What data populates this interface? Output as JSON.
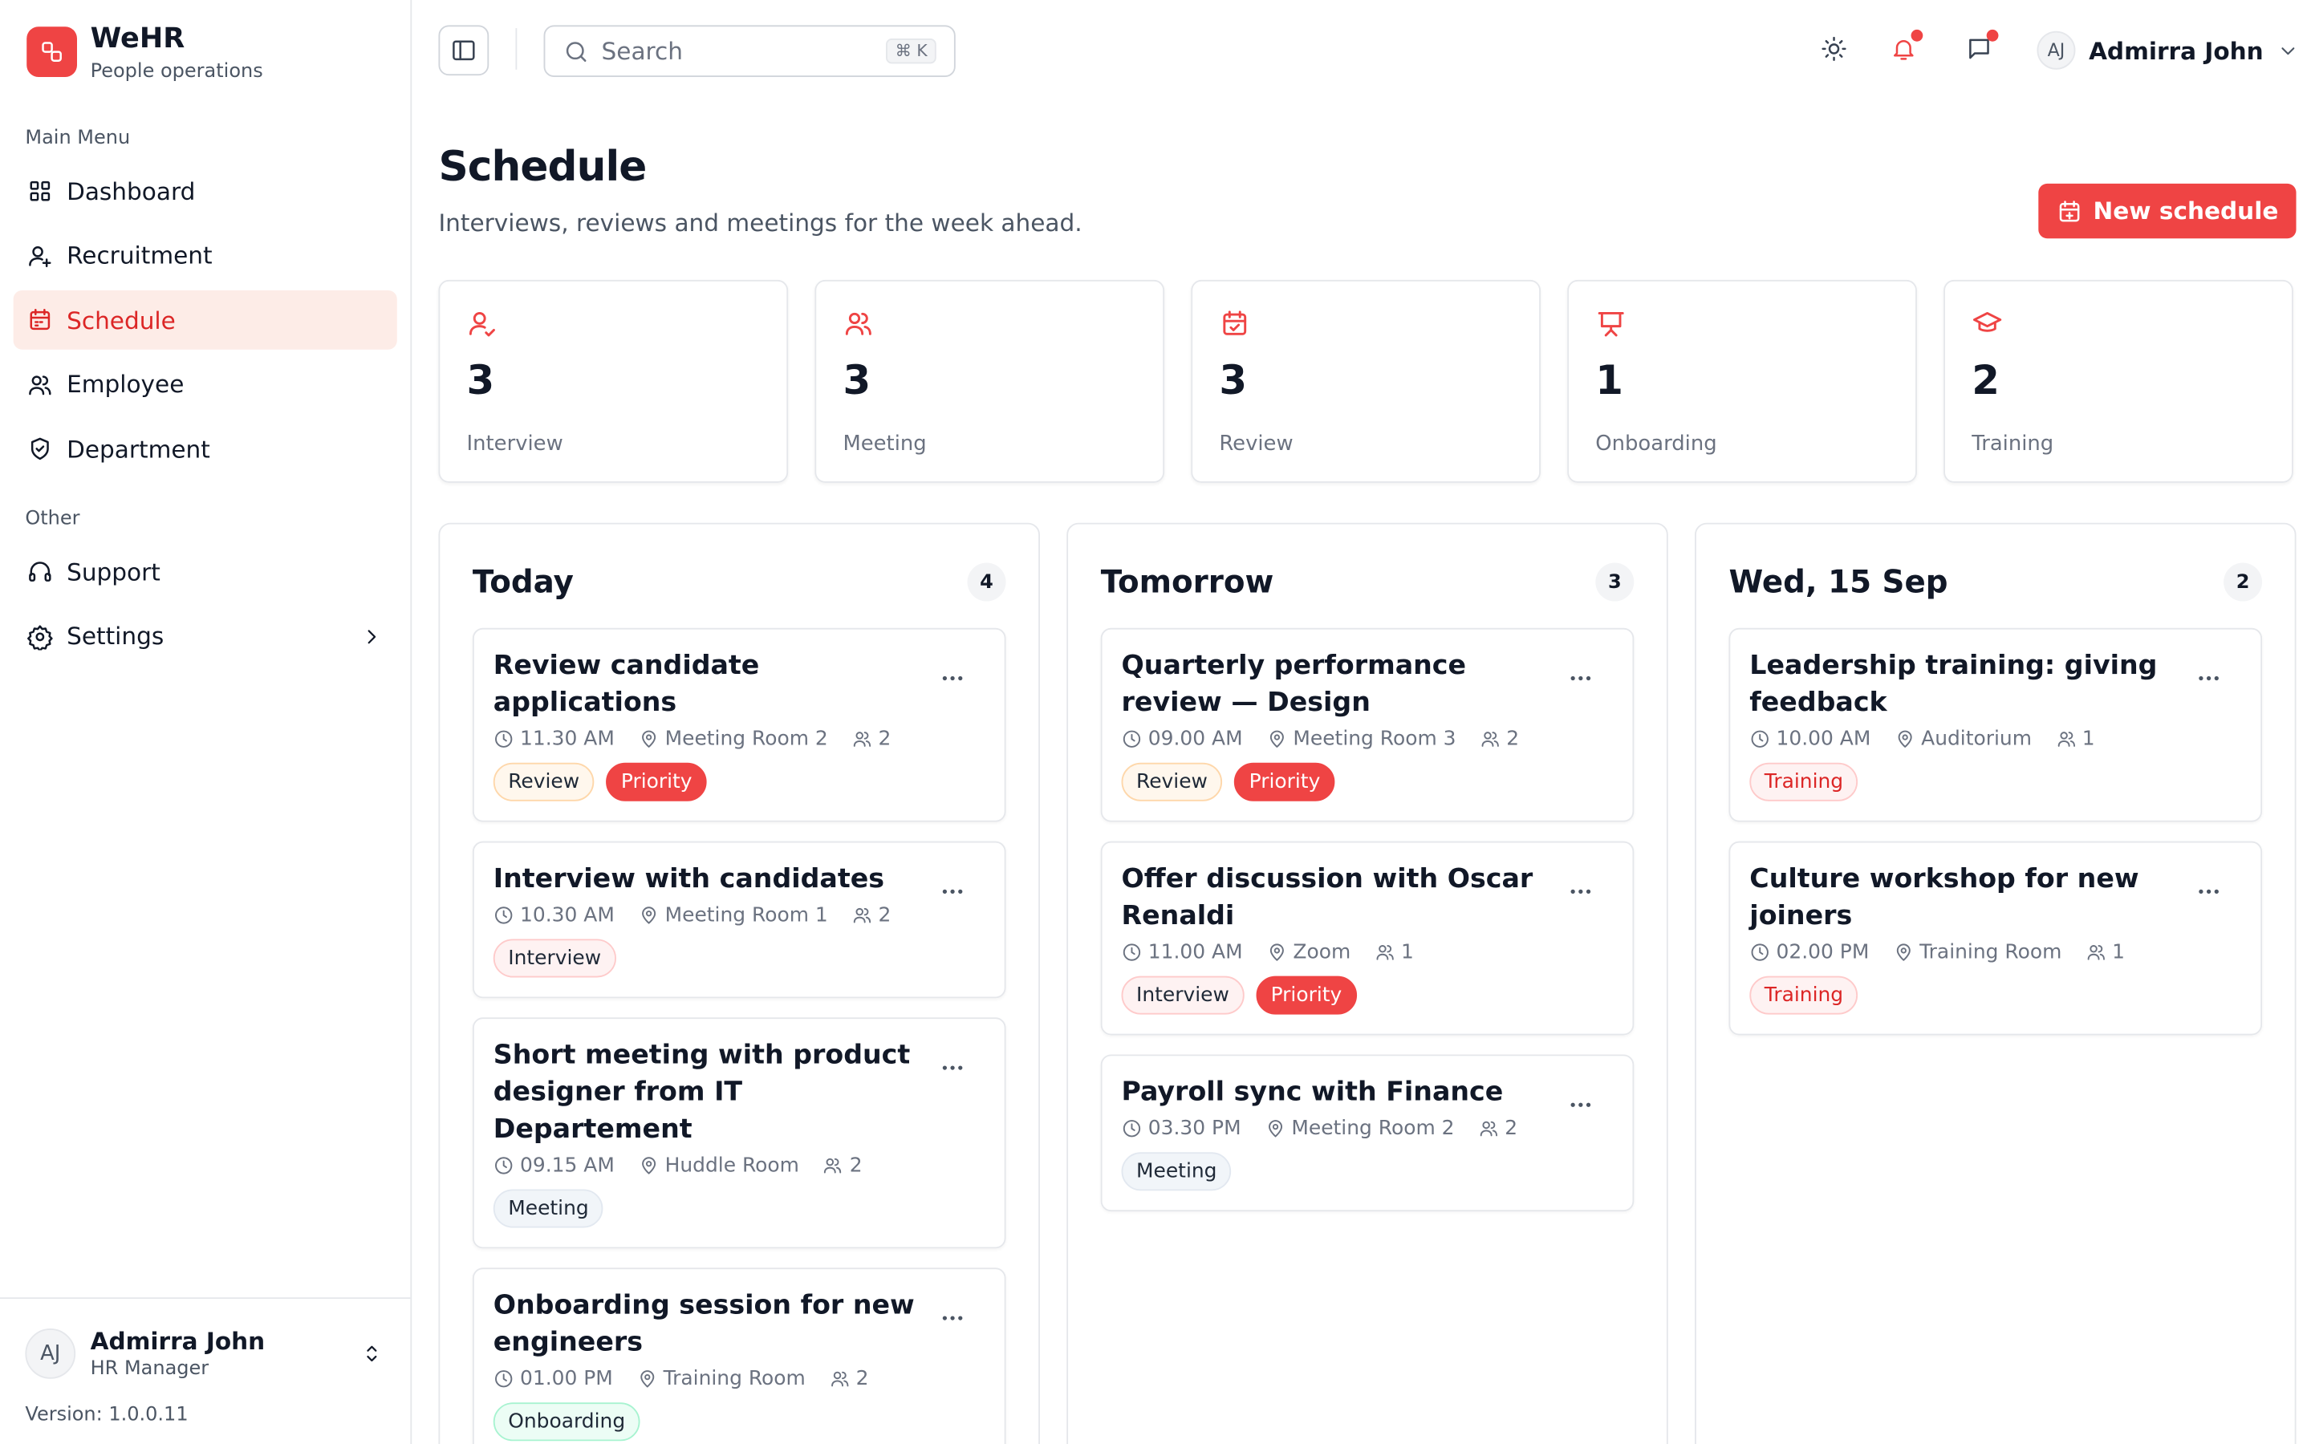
{
  "brand": {
    "name": "WeHR",
    "subtitle": "People operations"
  },
  "sidebar": {
    "active": "Schedule",
    "sections": [
      {
        "title": "Main Menu",
        "items": [
          {
            "label": "Dashboard",
            "icon": "grid"
          },
          {
            "label": "Recruitment",
            "icon": "user-plus"
          },
          {
            "label": "Schedule",
            "icon": "calendar"
          },
          {
            "label": "Employee",
            "icon": "users"
          },
          {
            "label": "Department",
            "icon": "shield"
          }
        ]
      },
      {
        "title": "Other",
        "items": [
          {
            "label": "Support",
            "icon": "headphones"
          },
          {
            "label": "Settings",
            "icon": "gear",
            "submenu": true
          }
        ]
      }
    ]
  },
  "user": {
    "initials": "AJ",
    "name": "Admirra John",
    "role": "HR Manager"
  },
  "version": "Version: 1.0.0.11",
  "topbar": {
    "search": "Search",
    "shortcut": "⌘ K"
  },
  "header": {
    "title": "Schedule",
    "subtitle": "Interviews, reviews and meetings for the week ahead.",
    "button": "New schedule"
  },
  "stats": [
    {
      "value": 3,
      "label": "Interview",
      "icon": "user-check"
    },
    {
      "value": 3,
      "label": "Meeting",
      "icon": "users"
    },
    {
      "value": 3,
      "label": "Review",
      "icon": "calendar-check"
    },
    {
      "value": 1,
      "label": "Onboarding",
      "icon": "presentation"
    },
    {
      "value": 2,
      "label": "Training",
      "icon": "cap"
    }
  ],
  "columns": [
    {
      "title": "Today",
      "count": 4,
      "events": [
        {
          "title": "Review candidate applications",
          "time": "11.30 AM",
          "location": "Meeting Room 2",
          "attendees": 2,
          "tags": [
            {
              "label": "Review",
              "tone": "orange"
            },
            {
              "label": "Priority",
              "tone": "solid"
            }
          ]
        },
        {
          "title": "Interview with candidates",
          "time": "10.30 AM",
          "location": "Meeting Room 1",
          "attendees": 2,
          "tags": [
            {
              "label": "Interview",
              "tone": "rose"
            }
          ]
        },
        {
          "title": "Short meeting with product designer from IT Departement",
          "time": "09.15 AM",
          "location": "Huddle Room",
          "attendees": 2,
          "tags": [
            {
              "label": "Meeting",
              "tone": "gray"
            }
          ]
        },
        {
          "title": "Onboarding session for new engineers",
          "time": "01.00 PM",
          "location": "Training Room",
          "attendees": 2,
          "tags": [
            {
              "label": "Onboarding",
              "tone": "green"
            }
          ]
        }
      ]
    },
    {
      "title": "Tomorrow",
      "count": 3,
      "events": [
        {
          "title": "Quarterly performance review — Design",
          "time": "09.00 AM",
          "location": "Meeting Room 3",
          "attendees": 2,
          "tags": [
            {
              "label": "Review",
              "tone": "orange"
            },
            {
              "label": "Priority",
              "tone": "solid"
            }
          ]
        },
        {
          "title": "Offer discussion with Oscar Renaldi",
          "time": "11.00 AM",
          "location": "Zoom",
          "attendees": 1,
          "tags": [
            {
              "label": "Interview",
              "tone": "rose"
            },
            {
              "label": "Priority",
              "tone": "solid"
            }
          ]
        },
        {
          "title": "Payroll sync with Finance",
          "time": "03.30 PM",
          "location": "Meeting Room 2",
          "attendees": 2,
          "tags": [
            {
              "label": "Meeting",
              "tone": "gray"
            }
          ]
        }
      ]
    },
    {
      "title": "Wed, 15 Sep",
      "count": 2,
      "events": [
        {
          "title": "Leadership training: giving feedback",
          "time": "10.00 AM",
          "location": "Auditorium",
          "attendees": 1,
          "tags": [
            {
              "label": "Training",
              "tone": "red"
            }
          ]
        },
        {
          "title": "Culture workshop for new joiners",
          "time": "02.00 PM",
          "location": "Training Room",
          "attendees": 1,
          "tags": [
            {
              "label": "Training",
              "tone": "red"
            }
          ]
        }
      ]
    }
  ]
}
